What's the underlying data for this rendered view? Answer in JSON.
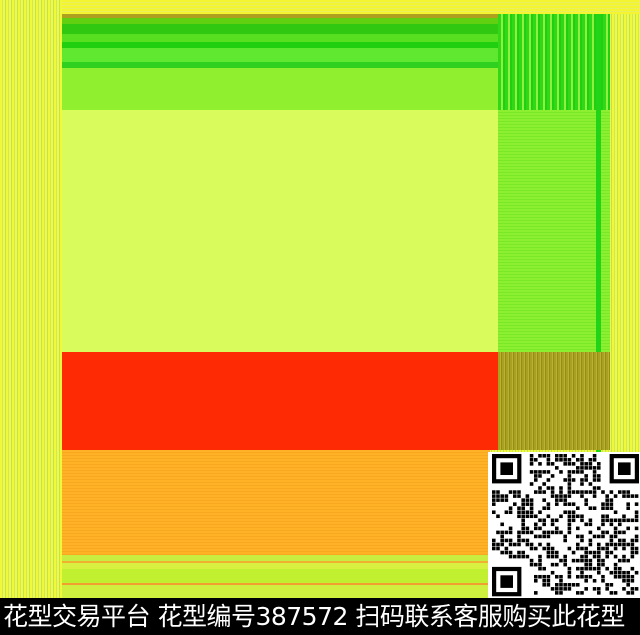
{
  "watermark": {
    "caption": "花型交易平台 花型编号387572 扫码联系客服购买此花型"
  },
  "colors": {
    "border": "#e4f43a",
    "light_panel": "#d9fb5c",
    "green_band": "#30c810",
    "red_band": "#fd2a04",
    "orange_band": "#ffb226",
    "caption_bg": "#000000"
  },
  "qr_code": {
    "present": true
  }
}
